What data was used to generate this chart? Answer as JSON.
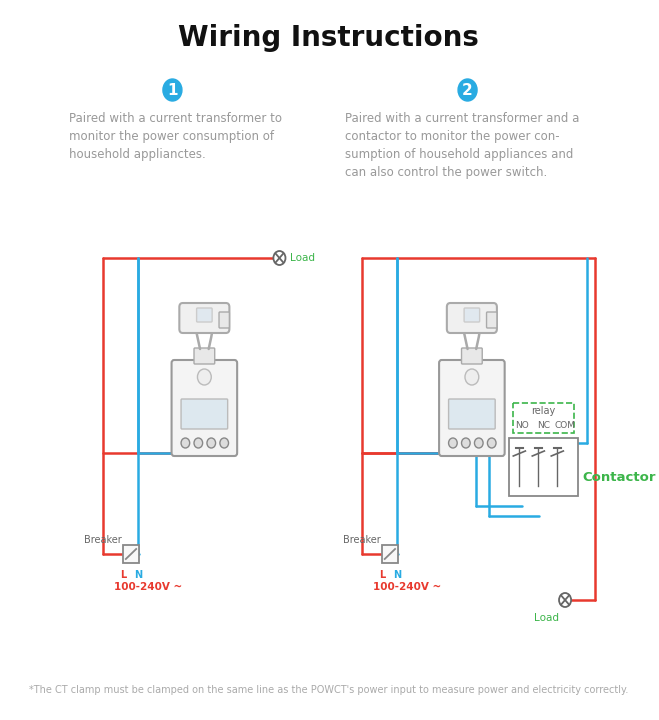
{
  "title": "Wiring Instructions",
  "footnote": "*The CT clamp must be clamped on the same line as the POWCT's power input to measure power and electricity correctly.",
  "diagram1_num": "1",
  "diagram2_num": "2",
  "diagram1_desc": "Paired with a current transformer to\nmonitor the power consumption of\nhousehold applianctes.",
  "diagram2_desc": "Paired with a current transformer and a\ncontactor to monitor the power con-\nsumption of household appliances and\ncan also control the power switch.",
  "red": "#e8392e",
  "blue": "#29abe2",
  "cyan": "#29abe2",
  "green": "#3cb54a",
  "gray": "#aaaaaa",
  "dark_gray": "#666666",
  "circle_bg": "#29abe2",
  "circle_text": "#ffffff",
  "desc_color": "#999999",
  "bg_color": "#ffffff",
  "title_fontsize": 20,
  "desc_fontsize": 8.5,
  "footnote_fontsize": 7.0,
  "label_fontsize": 7.5,
  "breaker_label": "Breaker",
  "voltage_label": "100-240V ~",
  "load_label": "Load",
  "contactor_label": "Contactor",
  "relay_label": "relay",
  "no_label": "NO",
  "nc_label": "NC",
  "com_label": "COM",
  "l_label": "L",
  "n_label": "N"
}
